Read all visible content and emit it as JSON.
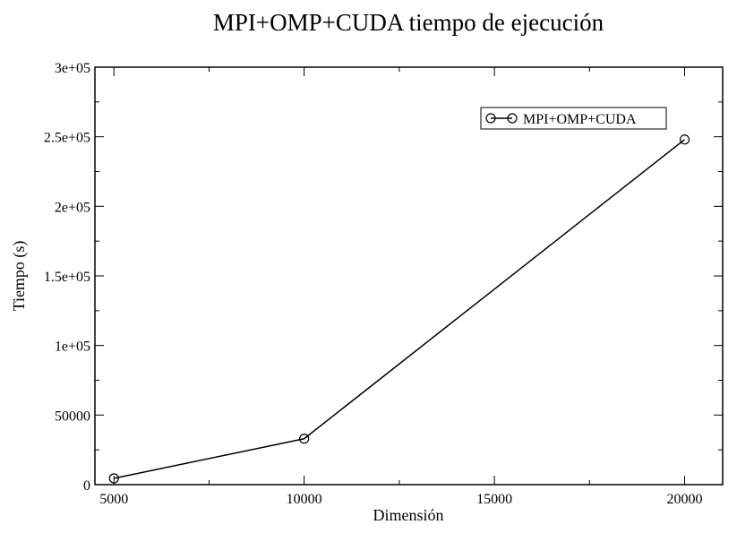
{
  "chart_data": {
    "type": "line",
    "title": "MPI+OMP+CUDA tiempo de ejecución",
    "xlabel": "Dimensión",
    "ylabel": "Tiempo (s)",
    "xlim": [
      4500,
      21000
    ],
    "ylim": [
      0,
      300000
    ],
    "xticks": [
      5000,
      10000,
      15000,
      20000
    ],
    "xtick_labels": [
      "5000",
      "10000",
      "15000",
      "20000"
    ],
    "yticks": [
      0,
      50000,
      100000,
      150000,
      200000,
      250000,
      300000
    ],
    "ytick_labels": [
      "0",
      "50000",
      "1e+05",
      "1.5e+05",
      "2e+05",
      "2.5e+05",
      "3e+05"
    ],
    "grid": false,
    "legend_position": "top-right",
    "series": [
      {
        "name": "MPI+OMP+CUDA",
        "marker": "circle",
        "color": "#000000",
        "x": [
          5000,
          10000,
          20000
        ],
        "y": [
          4500,
          33000,
          248000
        ]
      }
    ]
  }
}
